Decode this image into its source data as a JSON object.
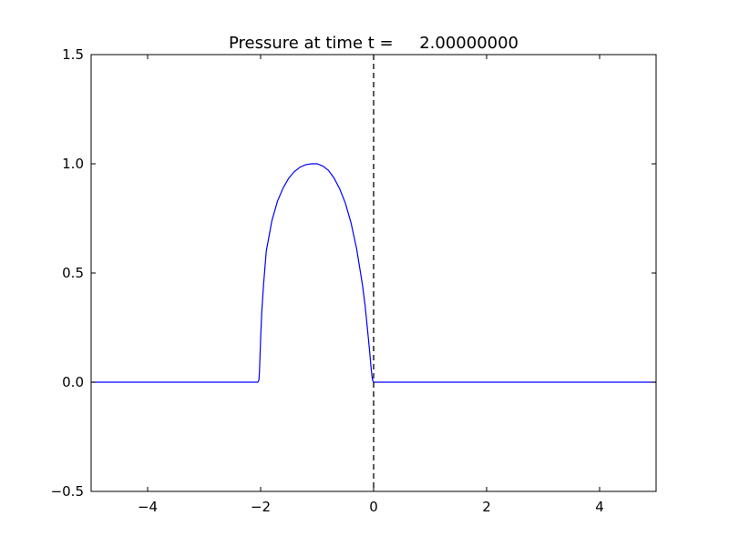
{
  "chart_data": {
    "type": "line",
    "title": "Pressure at time t =     2.00000000",
    "xlabel": "",
    "ylabel": "",
    "xlim": [
      -5,
      5
    ],
    "ylim": [
      -0.5,
      1.5
    ],
    "xticks": [
      -4,
      -2,
      0,
      2,
      4
    ],
    "xtick_labels": [
      "−4",
      "−2",
      "0",
      "2",
      "4"
    ],
    "yticks": [
      -0.5,
      0.0,
      0.5,
      1.0,
      1.5
    ],
    "ytick_labels": [
      "−0.5",
      "0.0",
      "0.5",
      "1.0",
      "1.5"
    ],
    "grid": false,
    "series": [
      {
        "color": "#0000ff",
        "x": [
          -5,
          -2.05,
          -2.03,
          -2.02,
          -2.0,
          -1.98,
          -1.95,
          -1.9,
          -1.8,
          -1.7,
          -1.6,
          -1.5,
          -1.4,
          -1.3,
          -1.2,
          -1.1,
          -1.0,
          -0.9,
          -0.8,
          -0.7,
          -0.6,
          -0.5,
          -0.4,
          -0.3,
          -0.2,
          -0.15,
          -0.1,
          -0.07,
          -0.05,
          -0.03,
          -0.02,
          0.0,
          0.02,
          5
        ],
        "y": [
          0.0,
          0.0,
          0.01,
          0.05,
          0.2,
          0.32,
          0.44,
          0.6,
          0.74,
          0.83,
          0.89,
          0.935,
          0.965,
          0.985,
          0.996,
          1.0,
          1.0,
          0.99,
          0.97,
          0.935,
          0.885,
          0.82,
          0.73,
          0.61,
          0.45,
          0.35,
          0.22,
          0.14,
          0.08,
          0.03,
          0.01,
          0.0,
          0.0,
          0.0
        ]
      }
    ],
    "reference_line": {
      "x": 0,
      "style": "dashed",
      "color": "#000000"
    }
  }
}
